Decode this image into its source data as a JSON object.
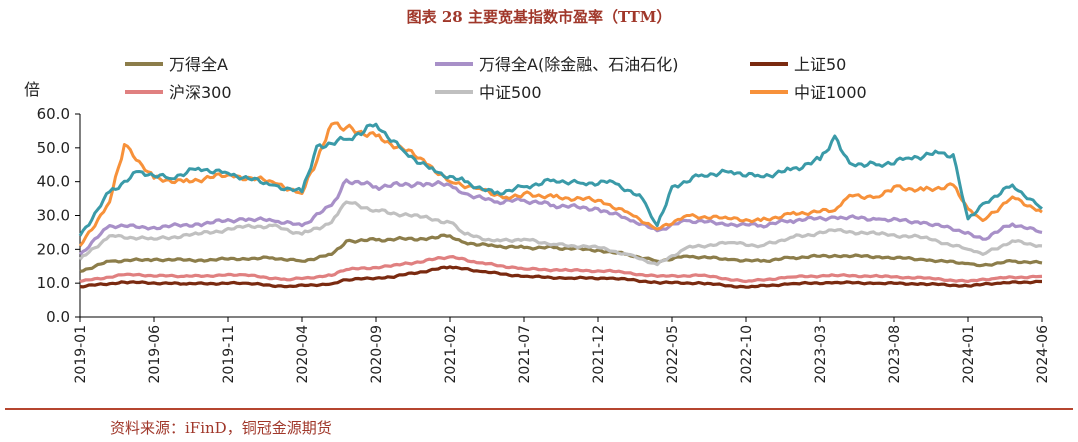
{
  "chart_data": {
    "type": "line",
    "title": "图表 28  主要宽基指数市盈率（TTM）",
    "ylabel": "倍",
    "ylim": [
      0,
      60
    ],
    "yticks": [
      "0.0",
      "10.0",
      "20.0",
      "30.0",
      "40.0",
      "50.0",
      "60.0"
    ],
    "x_tick_labels": [
      "2019-01",
      "2019-06",
      "2019-11",
      "2020-04",
      "2020-09",
      "2021-02",
      "2021-07",
      "2021-12",
      "2022-05",
      "2022-10",
      "2023-03",
      "2023-08",
      "2024-01",
      "2024-06"
    ],
    "x_range": [
      "2019-01",
      "2024-06"
    ],
    "source": "资料来源：iFinD，铜冠金源期货",
    "series": [
      {
        "name": "万得全A",
        "color": "#8c7d4a",
        "x": [
          "2019-01",
          "2019-03",
          "2019-06",
          "2019-09",
          "2019-12",
          "2020-02",
          "2020-04",
          "2020-06",
          "2020-07",
          "2020-09",
          "2020-12",
          "2021-02",
          "2021-03",
          "2021-05",
          "2021-07",
          "2021-09",
          "2021-12",
          "2022-02",
          "2022-04",
          "2022-06",
          "2022-09",
          "2022-11",
          "2023-01",
          "2023-04",
          "2023-07",
          "2023-10",
          "2024-01",
          "2024-02",
          "2024-04",
          "2024-06"
        ],
        "values": [
          13.5,
          16.5,
          17.0,
          16.8,
          17.3,
          17.5,
          16.5,
          18.5,
          22.5,
          22.8,
          23.2,
          24.0,
          22.0,
          21.0,
          20.5,
          20.5,
          19.8,
          18.5,
          16.5,
          18.0,
          17.0,
          16.5,
          17.5,
          18.2,
          17.8,
          17.0,
          15.8,
          15.3,
          16.5,
          16.0
        ]
      },
      {
        "name": "万得全A(除金融、石油石化)",
        "color": "#a890c8",
        "x": [
          "2019-01",
          "2019-03",
          "2019-06",
          "2019-09",
          "2019-12",
          "2020-02",
          "2020-04",
          "2020-06",
          "2020-07",
          "2020-09",
          "2020-12",
          "2021-02",
          "2021-03",
          "2021-05",
          "2021-07",
          "2021-09",
          "2021-12",
          "2022-02",
          "2022-04",
          "2022-06",
          "2022-09",
          "2022-11",
          "2023-01",
          "2023-04",
          "2023-07",
          "2023-10",
          "2024-01",
          "2024-02",
          "2024-04",
          "2024-06"
        ],
        "values": [
          18.5,
          27.0,
          26.5,
          27.5,
          29.0,
          28.5,
          27.0,
          33.0,
          40.5,
          38.5,
          39.5,
          39.0,
          36.5,
          34.0,
          34.5,
          33.0,
          32.0,
          29.0,
          25.5,
          28.5,
          27.5,
          27.0,
          28.5,
          29.5,
          29.0,
          28.0,
          25.0,
          23.0,
          27.5,
          25.0
        ]
      },
      {
        "name": "上证50",
        "color": "#7a2a10",
        "x": [
          "2019-01",
          "2019-04",
          "2019-08",
          "2019-12",
          "2020-03",
          "2020-06",
          "2020-07",
          "2020-10",
          "2021-02",
          "2021-04",
          "2021-07",
          "2021-10",
          "2022-01",
          "2022-04",
          "2022-07",
          "2022-10",
          "2023-01",
          "2023-04",
          "2023-07",
          "2023-10",
          "2024-01",
          "2024-03",
          "2024-06"
        ],
        "values": [
          9.0,
          10.3,
          9.8,
          10.0,
          9.0,
          9.8,
          11.0,
          11.8,
          14.8,
          13.5,
          12.0,
          11.5,
          11.5,
          10.2,
          10.0,
          8.8,
          9.8,
          10.2,
          10.0,
          9.8,
          9.2,
          10.0,
          10.5
        ]
      },
      {
        "name": "沪深300",
        "color": "#e08080",
        "x": [
          "2019-01",
          "2019-04",
          "2019-08",
          "2019-12",
          "2020-03",
          "2020-06",
          "2020-07",
          "2020-10",
          "2021-02",
          "2021-04",
          "2021-07",
          "2021-10",
          "2022-01",
          "2022-04",
          "2022-07",
          "2022-10",
          "2023-01",
          "2023-04",
          "2023-07",
          "2023-10",
          "2024-01",
          "2024-03",
          "2024-06"
        ],
        "values": [
          10.5,
          12.5,
          12.0,
          12.5,
          11.0,
          12.3,
          14.0,
          15.0,
          17.8,
          16.0,
          14.2,
          13.8,
          13.5,
          12.0,
          12.3,
          10.5,
          11.8,
          12.3,
          12.0,
          11.5,
          10.5,
          11.5,
          12.0
        ]
      },
      {
        "name": "中证500",
        "color": "#c0c0c0",
        "x": [
          "2019-01",
          "2019-03",
          "2019-06",
          "2019-09",
          "2019-12",
          "2020-02",
          "2020-04",
          "2020-06",
          "2020-07",
          "2020-09",
          "2020-12",
          "2021-02",
          "2021-03",
          "2021-05",
          "2021-07",
          "2021-09",
          "2021-12",
          "2022-02",
          "2022-04",
          "2022-06",
          "2022-09",
          "2022-11",
          "2023-01",
          "2023-04",
          "2023-07",
          "2023-10",
          "2024-01",
          "2024-02",
          "2024-04",
          "2024-06"
        ],
        "values": [
          17.0,
          24.0,
          23.0,
          24.5,
          26.5,
          27.0,
          24.5,
          28.0,
          34.0,
          31.5,
          29.5,
          28.0,
          24.5,
          22.5,
          23.0,
          21.5,
          20.5,
          18.5,
          15.5,
          20.5,
          22.0,
          21.0,
          23.5,
          25.5,
          24.5,
          23.5,
          20.0,
          18.5,
          22.5,
          21.0
        ]
      },
      {
        "name": "中证1000",
        "color": "#f7913a",
        "x": [
          "2019-01",
          "2019-03",
          "2019-04",
          "2019-06",
          "2019-08",
          "2019-11",
          "2020-02",
          "2020-04",
          "2020-06",
          "2020-07",
          "2020-09",
          "2020-12",
          "2021-02",
          "2021-04",
          "2021-06",
          "2021-07",
          "2021-09",
          "2021-12",
          "2022-02",
          "2022-04",
          "2022-06",
          "2022-09",
          "2022-11",
          "2023-01",
          "2023-04",
          "2023-05",
          "2023-07",
          "2023-08",
          "2023-10",
          "2023-12",
          "2024-01",
          "2024-02",
          "2024-04",
          "2024-06"
        ],
        "values": [
          21.0,
          34.0,
          51.0,
          41.0,
          40.0,
          42.0,
          40.0,
          36.5,
          57.0,
          56.0,
          53.5,
          47.0,
          40.0,
          38.0,
          35.0,
          36.5,
          35.5,
          34.5,
          31.0,
          26.0,
          30.0,
          29.0,
          28.5,
          30.5,
          31.5,
          36.0,
          35.5,
          38.5,
          37.5,
          39.0,
          32.0,
          28.5,
          35.5,
          31.0
        ]
      },
      {
        "name": "",
        "color": "#3a9aa8",
        "x": [
          "2019-01",
          "2019-03",
          "2019-05",
          "2019-07",
          "2019-09",
          "2019-11",
          "2020-02",
          "2020-04",
          "2020-05",
          "2020-07",
          "2020-09",
          "2020-11",
          "2021-01",
          "2021-03",
          "2021-05",
          "2021-07",
          "2021-09",
          "2021-11",
          "2022-01",
          "2022-03",
          "2022-04",
          "2022-05",
          "2022-07",
          "2022-09",
          "2022-11",
          "2023-01",
          "2023-03",
          "2023-04",
          "2023-05",
          "2023-07",
          "2023-09",
          "2023-11",
          "2023-12",
          "2024-01",
          "2024-02",
          "2024-04",
          "2024-06"
        ],
        "values": [
          24.0,
          37.0,
          43.0,
          41.0,
          44.0,
          42.5,
          39.0,
          37.0,
          50.5,
          52.5,
          57.0,
          48.5,
          43.0,
          40.0,
          36.5,
          38.5,
          40.5,
          39.5,
          40.0,
          35.0,
          27.0,
          38.5,
          42.0,
          43.0,
          41.5,
          43.5,
          46.5,
          53.5,
          45.5,
          45.0,
          47.0,
          48.5,
          48.0,
          29.0,
          33.5,
          39.0,
          32.0
        ]
      }
    ]
  }
}
